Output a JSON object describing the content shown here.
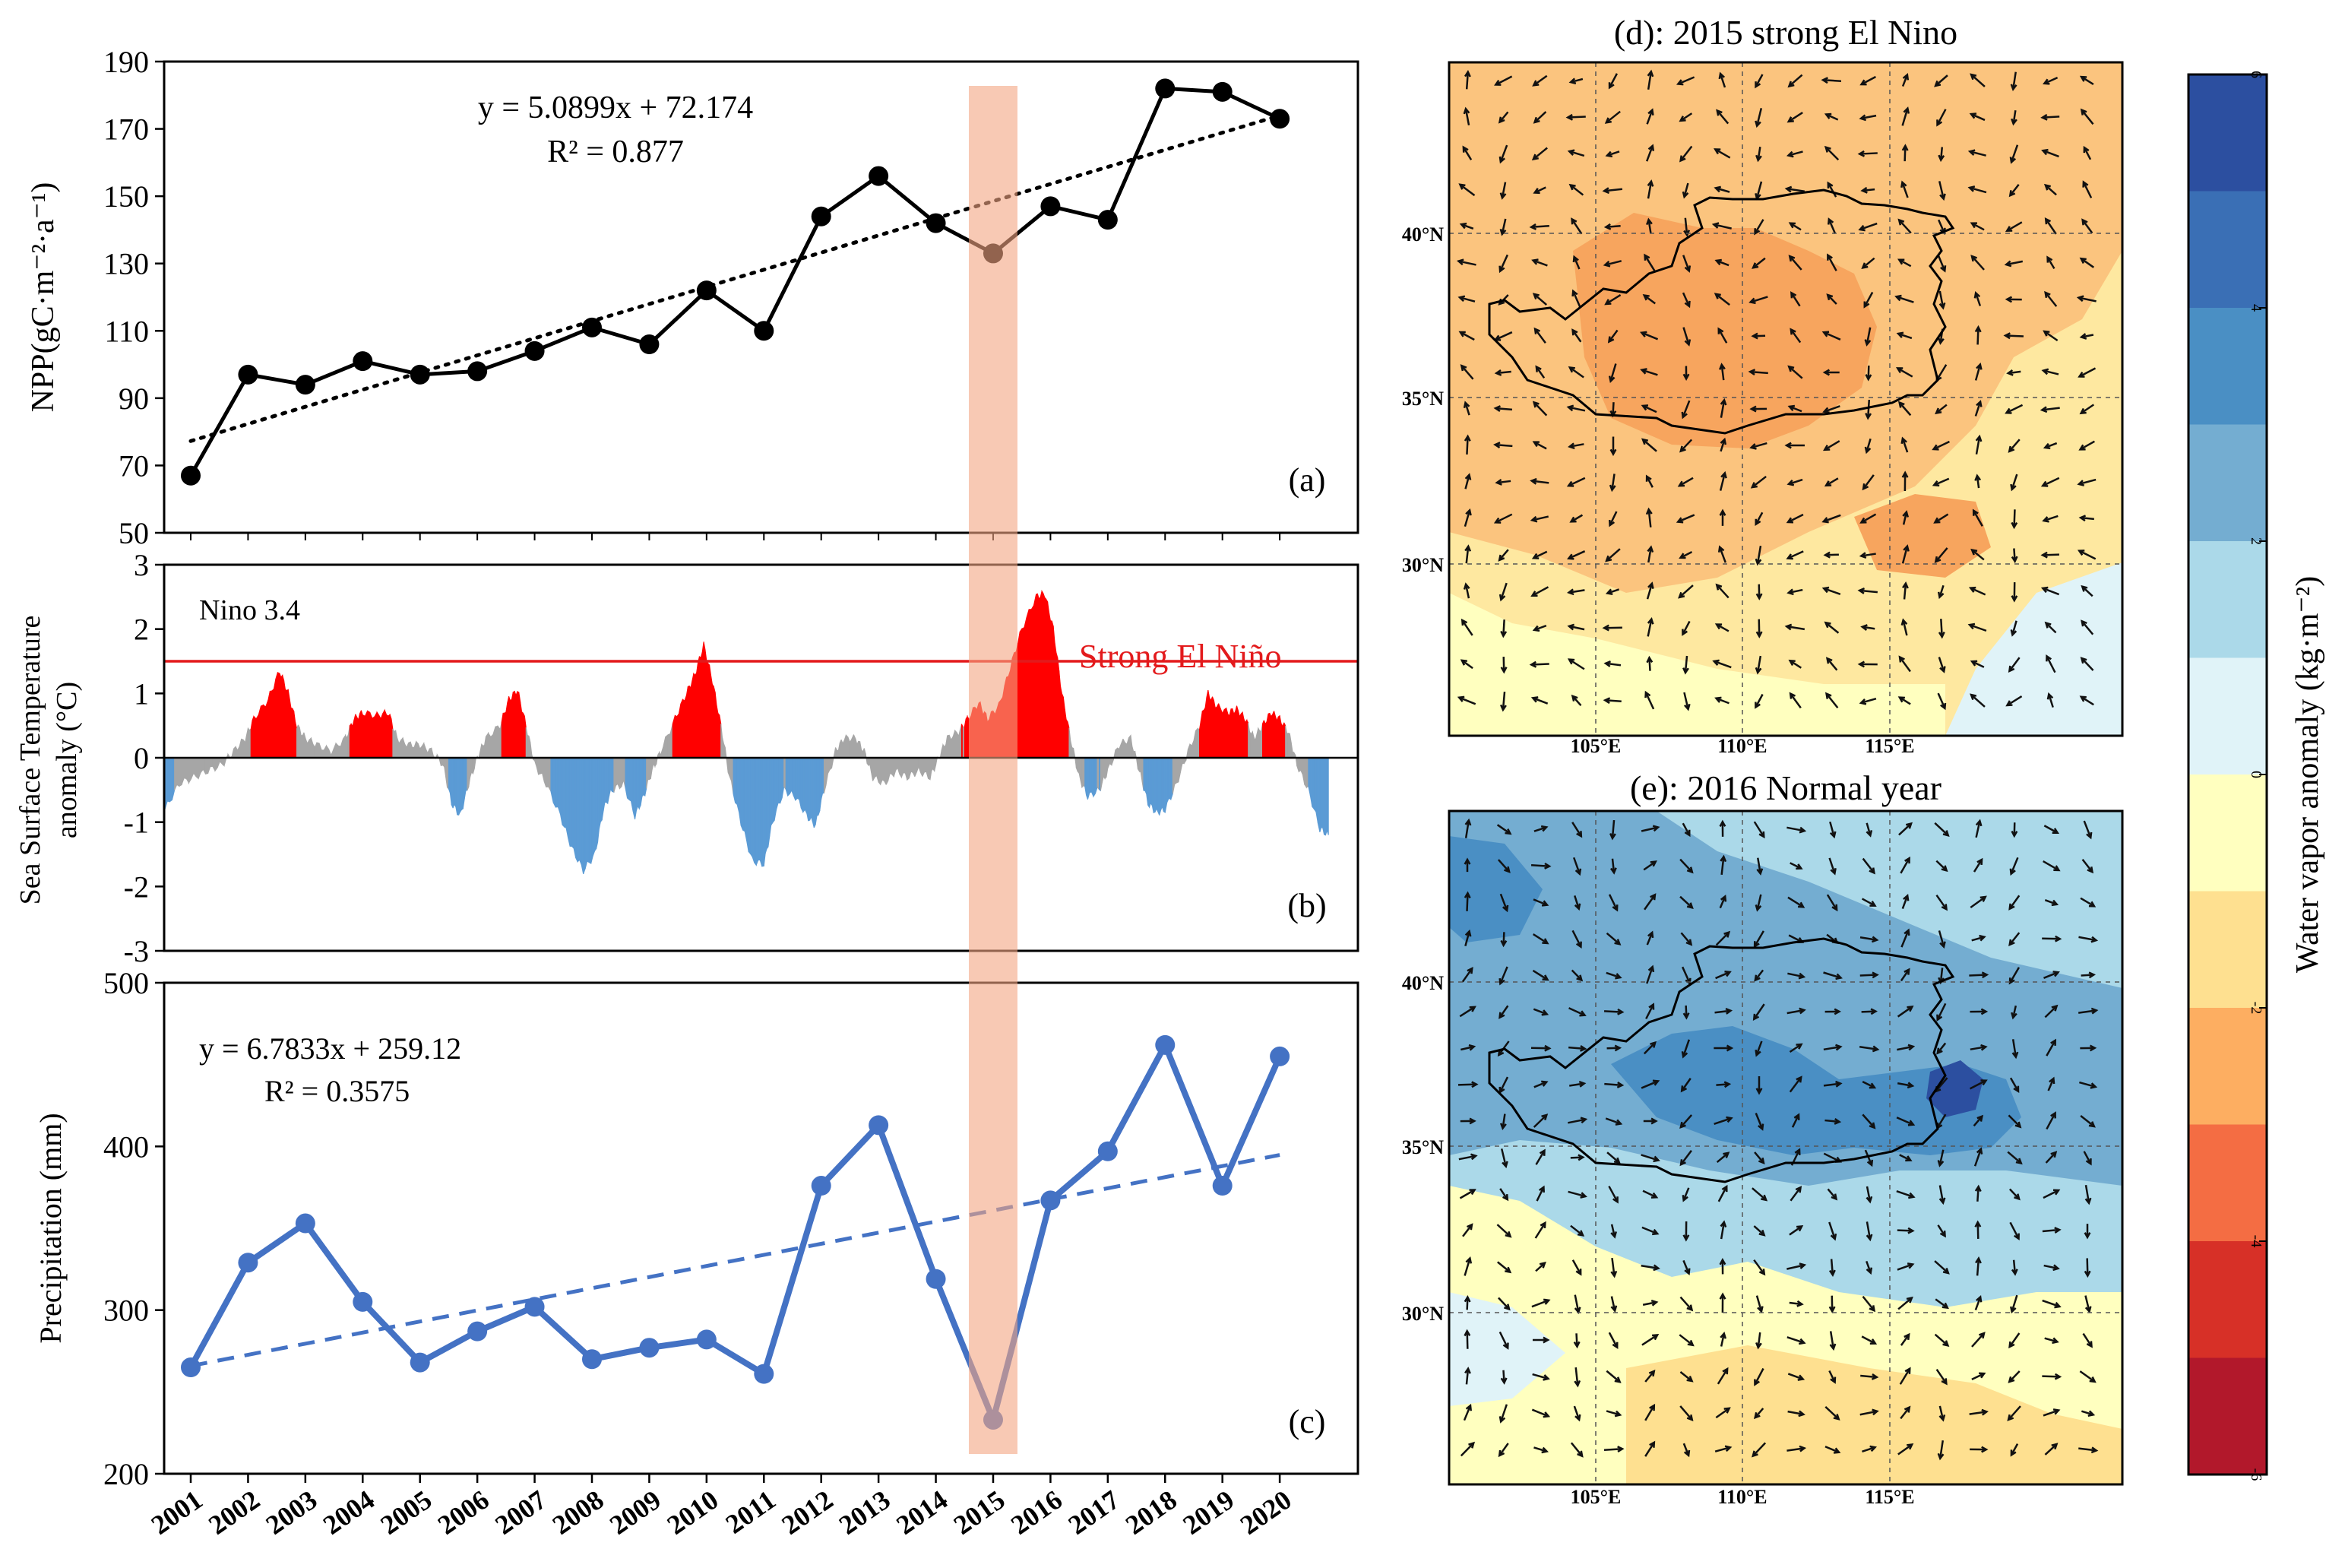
{
  "chart_data": [
    {
      "panel": "a",
      "type": "line",
      "panel_label": "(a)",
      "ylabel": "NPP(gC·m⁻²·a⁻¹)",
      "ylim": [
        50,
        190
      ],
      "yticks": [
        50,
        70,
        90,
        110,
        130,
        150,
        170,
        190
      ],
      "x": [
        2001,
        2002,
        2003,
        2004,
        2005,
        2006,
        2007,
        2008,
        2009,
        2010,
        2011,
        2012,
        2013,
        2014,
        2015,
        2016,
        2017,
        2018,
        2019,
        2020
      ],
      "series": [
        {
          "values": [
            67,
            97,
            94,
            101,
            97,
            98,
            104,
            111,
            106,
            122,
            110,
            144,
            156,
            142,
            133,
            147,
            143,
            182,
            181,
            173
          ]
        }
      ],
      "trend_label": "y = 5.0899x + 72.174",
      "r2_label": "R² = 0.877",
      "trend": {
        "slope": 5.0899,
        "intercept": 72.174
      },
      "colors": {
        "line": "#000000",
        "trend": "#000000"
      }
    },
    {
      "panel": "b",
      "type": "area",
      "panel_label": "(b)",
      "index_label": "Nino 3.4",
      "ylabel": [
        "Sea Surface Temperature",
        "anomaly (°C)"
      ],
      "ylim": [
        -3,
        3
      ],
      "yticks": [
        -3,
        -2,
        -1,
        0,
        1,
        2,
        3
      ],
      "threshold": 1.5,
      "threshold_label": "Strong El Niño",
      "x_range": [
        2001,
        2020.9
      ],
      "anomaly_keyframes": [
        [
          2000.55,
          -0.8
        ],
        [
          2000.8,
          -0.4
        ],
        [
          2001.05,
          -0.3
        ],
        [
          2001.3,
          -0.2
        ],
        [
          2001.55,
          -0.1
        ],
        [
          2001.75,
          0.1
        ],
        [
          2001.95,
          0.3
        ],
        [
          2002.1,
          0.6
        ],
        [
          2002.35,
          0.9
        ],
        [
          2002.55,
          1.35
        ],
        [
          2002.7,
          1.0
        ],
        [
          2002.85,
          0.5
        ],
        [
          2003.0,
          0.3
        ],
        [
          2003.2,
          0.2
        ],
        [
          2003.45,
          0.1
        ],
        [
          2003.7,
          0.3
        ],
        [
          2003.85,
          0.6
        ],
        [
          2004.0,
          0.7
        ],
        [
          2004.25,
          0.65
        ],
        [
          2004.45,
          0.7
        ],
        [
          2004.6,
          0.3
        ],
        [
          2004.8,
          0.2
        ],
        [
          2005.0,
          0.2
        ],
        [
          2005.2,
          0.1
        ],
        [
          2005.4,
          -0.1
        ],
        [
          2005.55,
          -0.7
        ],
        [
          2005.7,
          -0.9
        ],
        [
          2005.85,
          -0.4
        ],
        [
          2006.0,
          0.0
        ],
        [
          2006.15,
          0.3
        ],
        [
          2006.4,
          0.5
        ],
        [
          2006.55,
          0.9
        ],
        [
          2006.7,
          1.05
        ],
        [
          2006.85,
          0.5
        ],
        [
          2007.0,
          -0.1
        ],
        [
          2007.2,
          -0.4
        ],
        [
          2007.45,
          -0.9
        ],
        [
          2007.65,
          -1.4
        ],
        [
          2007.85,
          -1.75
        ],
        [
          2008.05,
          -1.5
        ],
        [
          2008.2,
          -0.8
        ],
        [
          2008.35,
          -0.5
        ],
        [
          2008.55,
          -0.4
        ],
        [
          2008.75,
          -0.9
        ],
        [
          2008.9,
          -0.6
        ],
        [
          2009.05,
          -0.2
        ],
        [
          2009.2,
          0.1
        ],
        [
          2009.45,
          0.6
        ],
        [
          2009.65,
          1.0
        ],
        [
          2009.8,
          1.3
        ],
        [
          2009.95,
          1.75
        ],
        [
          2010.1,
          1.2
        ],
        [
          2010.25,
          0.5
        ],
        [
          2010.4,
          -0.3
        ],
        [
          2010.6,
          -1.0
        ],
        [
          2010.8,
          -1.6
        ],
        [
          2011.0,
          -1.65
        ],
        [
          2011.15,
          -1.0
        ],
        [
          2011.35,
          -0.5
        ],
        [
          2011.55,
          -0.6
        ],
        [
          2011.75,
          -0.9
        ],
        [
          2011.9,
          -1.05
        ],
        [
          2012.05,
          -0.5
        ],
        [
          2012.25,
          0.1
        ],
        [
          2012.4,
          0.3
        ],
        [
          2012.6,
          0.3
        ],
        [
          2012.75,
          0.1
        ],
        [
          2012.9,
          -0.3
        ],
        [
          2013.1,
          -0.4
        ],
        [
          2013.3,
          -0.2
        ],
        [
          2013.5,
          -0.3
        ],
        [
          2013.7,
          -0.2
        ],
        [
          2013.9,
          -0.3
        ],
        [
          2014.05,
          0.0
        ],
        [
          2014.2,
          0.3
        ],
        [
          2014.4,
          0.4
        ],
        [
          2014.55,
          0.6
        ],
        [
          2014.75,
          0.85
        ],
        [
          2014.9,
          0.6
        ],
        [
          2015.1,
          0.8
        ],
        [
          2015.3,
          1.4
        ],
        [
          2015.5,
          2.0
        ],
        [
          2015.75,
          2.5
        ],
        [
          2015.9,
          2.55
        ],
        [
          2016.05,
          2.0
        ],
        [
          2016.2,
          1.0
        ],
        [
          2016.35,
          0.3
        ],
        [
          2016.5,
          -0.3
        ],
        [
          2016.65,
          -0.6
        ],
        [
          2016.85,
          -0.5
        ],
        [
          2017.0,
          -0.2
        ],
        [
          2017.2,
          0.2
        ],
        [
          2017.4,
          0.3
        ],
        [
          2017.55,
          -0.2
        ],
        [
          2017.7,
          -0.7
        ],
        [
          2017.85,
          -0.85
        ],
        [
          2018.0,
          -0.8
        ],
        [
          2018.2,
          -0.4
        ],
        [
          2018.4,
          0.1
        ],
        [
          2018.6,
          0.5
        ],
        [
          2018.75,
          1.0
        ],
        [
          2018.9,
          0.8
        ],
        [
          2019.1,
          0.7
        ],
        [
          2019.25,
          0.75
        ],
        [
          2019.4,
          0.6
        ],
        [
          2019.55,
          0.3
        ],
        [
          2019.7,
          0.5
        ],
        [
          2019.85,
          0.7
        ],
        [
          2020.0,
          0.6
        ],
        [
          2020.15,
          0.4
        ],
        [
          2020.3,
          -0.1
        ],
        [
          2020.5,
          -0.5
        ],
        [
          2020.7,
          -1.1
        ],
        [
          2020.85,
          -1.2
        ]
      ],
      "colors": {
        "warm_fill": "#ff0000",
        "cold_fill": "#5b9bd5",
        "neutral_fill": "#a6a6a6",
        "threshold_line": "#e31a1c"
      }
    },
    {
      "panel": "c",
      "type": "line",
      "panel_label": "(c)",
      "ylabel": "Precipitation (mm)",
      "ylim": [
        200,
        500
      ],
      "yticks": [
        200,
        300,
        400,
        500
      ],
      "x": [
        2001,
        2002,
        2003,
        2004,
        2005,
        2006,
        2007,
        2008,
        2009,
        2010,
        2011,
        2012,
        2013,
        2014,
        2015,
        2016,
        2017,
        2018,
        2019,
        2020
      ],
      "xtick_labels": [
        "2001",
        "2002",
        "2003",
        "2004",
        "2005",
        "2006",
        "2007",
        "2008",
        "2009",
        "2010",
        "2011",
        "2012",
        "2013",
        "2014",
        "2015",
        "2016",
        "2017",
        "2018",
        "2019",
        "2020"
      ],
      "series": [
        {
          "values": [
            265,
            329,
            353,
            305,
            268,
            287,
            302,
            270,
            277,
            282,
            261,
            376,
            413,
            319,
            233,
            367,
            397,
            462,
            376,
            455
          ]
        }
      ],
      "trend_label": "y = 6.7833x + 259.12",
      "r2_label": "R² = 0.3575",
      "trend": {
        "slope": 6.7833,
        "intercept": 259.12
      },
      "colors": {
        "line": "#4472c4",
        "trend": "#4472c4"
      }
    },
    {
      "panel": "d",
      "type": "heatmap",
      "title": "(d): 2015 strong El Nino",
      "lat_labels": [
        "30°N",
        "35°N",
        "40°N"
      ],
      "lon_labels": [
        "105°E",
        "110°E",
        "115°E"
      ],
      "field": "negative water vapor anomaly (-2 to -4) centered on the Loess Plateau, with positive anomaly to the southeast"
    },
    {
      "panel": "e",
      "type": "heatmap",
      "title": "(e): 2016 Normal year",
      "lat_labels": [
        "30°N",
        "35°N",
        "40°N"
      ],
      "lon_labels": [
        "105°E",
        "110°E",
        "115°E"
      ],
      "field": "positive water vapor anomaly (2 to 6) over the Loess Plateau, maximum near 115°E 37°N"
    },
    {
      "panel": "colorbar",
      "type": "heatmap",
      "label": "Water vapor anomaly (kg·m⁻²)",
      "tick_labels": [
        "-6",
        "-4",
        "-2",
        "0",
        "2",
        "4",
        "6"
      ],
      "levels": [
        -6,
        -5,
        -4,
        -3,
        -2,
        -1,
        0,
        1,
        2,
        3,
        4,
        5,
        6
      ],
      "colors": [
        "#b2182b",
        "#d73027",
        "#f46d43",
        "#fdae61",
        "#fee090",
        "#ffffbf",
        "#e0f3f8",
        "#abd9e9",
        "#74add1",
        "#4a8fc4",
        "#3a6fb5",
        "#2c4fa0"
      ]
    }
  ],
  "highlight_year": 2015,
  "highlight_color": "#f4a582"
}
